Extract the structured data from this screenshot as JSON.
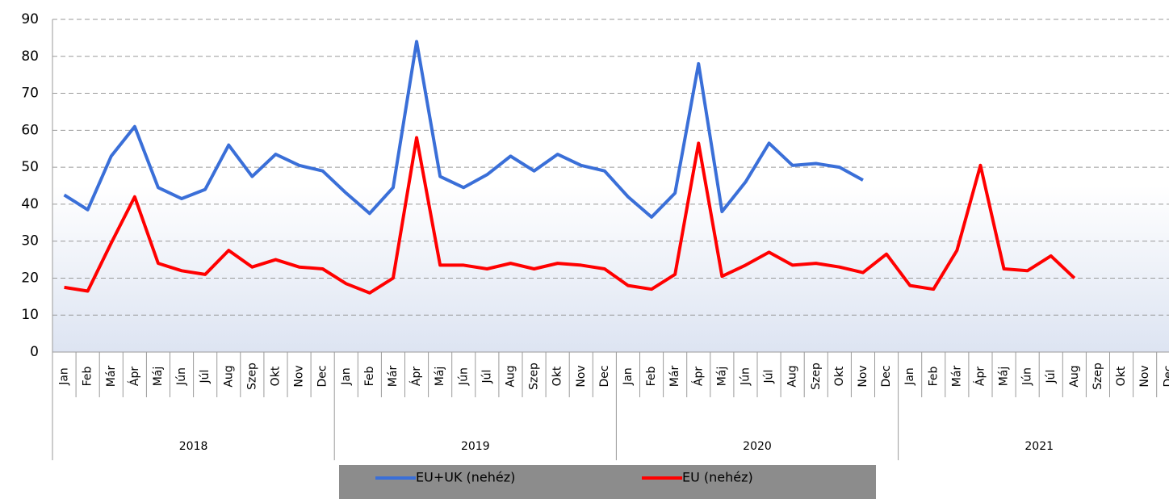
{
  "chart_data": {
    "type": "line",
    "categories": [
      "Jan",
      "Feb",
      "Már",
      "Ápr",
      "Máj",
      "Jún",
      "Júl",
      "Aug",
      "Szep",
      "Okt",
      "Nov",
      "Dec",
      "Jan",
      "Feb",
      "Már",
      "Ápr",
      "Máj",
      "Jún",
      "Júl",
      "Aug",
      "Szep",
      "Okt",
      "Nov",
      "Dec",
      "Jan",
      "Feb",
      "Már",
      "Ápr",
      "Máj",
      "Jún",
      "Júl",
      "Aug",
      "Szep",
      "Okt",
      "Nov",
      "Dec",
      "Jan",
      "Feb",
      "Már",
      "Ápr",
      "Máj",
      "Jún",
      "Júl",
      "Aug",
      "Szep",
      "Okt",
      "Nov",
      "Dec"
    ],
    "years": [
      "2018",
      "2019",
      "2020",
      "2021"
    ],
    "series": [
      {
        "name": "EU+UK (nehéz)",
        "color": "#3a6fd8",
        "values": [
          42.5,
          38.5,
          53,
          61,
          44.5,
          41.5,
          44,
          56,
          47.5,
          53.5,
          50.5,
          49,
          43,
          37.5,
          44.5,
          84,
          47.5,
          44.5,
          48,
          53,
          49,
          53.5,
          50.5,
          49,
          42,
          36.5,
          43,
          78,
          38,
          46,
          56.5,
          50.5,
          51,
          50,
          46.5,
          null,
          null,
          null,
          null,
          null,
          null,
          null,
          null,
          null,
          null,
          null,
          null,
          null
        ]
      },
      {
        "name": "EU (nehéz)",
        "color": "#ff0000",
        "values": [
          17.5,
          16.5,
          29.5,
          42,
          24,
          22,
          21,
          27.5,
          23,
          25,
          23,
          22.5,
          18.5,
          16,
          20,
          58,
          23.5,
          23.5,
          22.5,
          24,
          22.5,
          24,
          23.5,
          22.5,
          18,
          17,
          21,
          56.5,
          20.5,
          23.5,
          27,
          23.5,
          24,
          23,
          21.5,
          26.5,
          18,
          17,
          27.5,
          50.5,
          22.5,
          22,
          26,
          20,
          null,
          null,
          null,
          null
        ]
      }
    ],
    "ylim": [
      0,
      90
    ],
    "yticks": [
      0,
      10,
      20,
      30,
      40,
      50,
      60,
      70,
      80,
      90
    ],
    "grid": true,
    "legend": "bottom"
  }
}
